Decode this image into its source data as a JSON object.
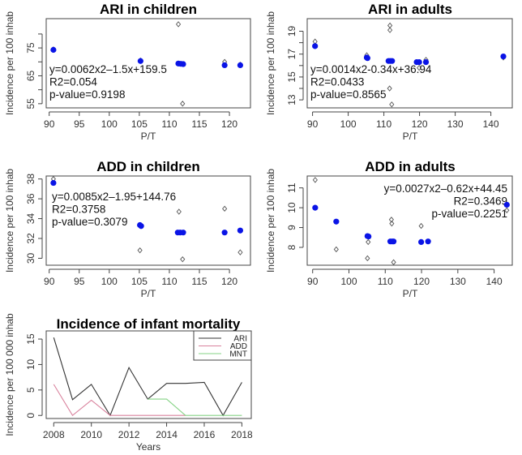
{
  "chart_data": [
    {
      "type": "scatter",
      "title": "ARI in children",
      "xlabel": "P/T",
      "ylabel": "Incidence per 100 inhab",
      "xlim": [
        89.5,
        123.5
      ],
      "ylim": [
        53.5,
        85.5
      ],
      "xticks": [
        90,
        95,
        100,
        105,
        110,
        115,
        120
      ],
      "yticks": [
        55,
        60,
        65,
        70,
        75,
        80
      ],
      "ytick_labels": {
        "55": "55",
        "65": "65",
        "75": "75"
      },
      "annotation": [
        "y=0.0062x2–1.5x+159.5",
        "R2=0.054",
        "p-value=0.9198"
      ],
      "annotation_position": "bottom-left",
      "fitted": [
        [
          90.7,
          74.3
        ],
        [
          105.2,
          70.3
        ],
        [
          111.5,
          69.4
        ],
        [
          111.9,
          69.3
        ],
        [
          112.3,
          69.2
        ],
        [
          119.2,
          68.8
        ],
        [
          121.8,
          68.8
        ]
      ],
      "observed": [
        [
          111.5,
          83.5
        ],
        [
          112.2,
          55.0
        ],
        [
          119.2,
          70.0
        ],
        [
          90.7,
          74.5
        ],
        [
          105.2,
          70.5
        ],
        [
          121.8,
          69.0
        ]
      ]
    },
    {
      "type": "scatter",
      "title": "ARI in adults",
      "xlabel": "P/T",
      "ylabel": "Incidence per 100 inhab",
      "xlim": [
        88.5,
        146
      ],
      "ylim": [
        12.3,
        20.1
      ],
      "xticks": [
        90,
        100,
        110,
        120,
        130,
        140
      ],
      "yticks": [
        13,
        14,
        15,
        16,
        17,
        18,
        19
      ],
      "ytick_labels": {
        "13": "13",
        "15": "15",
        "17": "17",
        "19": "19"
      },
      "annotation": [
        "y=0.0014x2-0.34x+36.94",
        "R2=0.0433",
        "p-value=0.8565"
      ],
      "annotation_position": "bottom-left",
      "fitted": [
        [
          90.7,
          17.7
        ],
        [
          105.2,
          16.7
        ],
        [
          105.4,
          16.65
        ],
        [
          111.3,
          16.4
        ],
        [
          111.8,
          16.4
        ],
        [
          112.3,
          16.4
        ],
        [
          119.2,
          16.3
        ],
        [
          119.9,
          16.3
        ],
        [
          121.8,
          16.3
        ],
        [
          143.5,
          16.8
        ]
      ],
      "observed": [
        [
          90.7,
          18.1
        ],
        [
          105.2,
          16.9
        ],
        [
          111.7,
          19.5
        ],
        [
          111.7,
          19.1
        ],
        [
          112.2,
          12.6
        ],
        [
          111.6,
          14.0
        ],
        [
          119.9,
          15.8
        ],
        [
          121.8,
          16.5
        ],
        [
          143.5,
          16.7
        ]
      ]
    },
    {
      "type": "scatter",
      "title": "ADD in children",
      "xlabel": "P/T",
      "ylabel": "Incidence per 100 inhab",
      "xlim": [
        89.5,
        123.5
      ],
      "ylim": [
        29.3,
        38.3
      ],
      "xticks": [
        90,
        95,
        100,
        105,
        110,
        115,
        120
      ],
      "yticks": [
        30,
        32,
        34,
        36,
        38
      ],
      "ytick_labels": {
        "30": "30",
        "32": "32",
        "34": "34",
        "36": "36",
        "38": "38"
      },
      "annotation": [
        "y=0.0085x2–1.95+144.76",
        "R2=0.3758",
        "p-value=0.3079"
      ],
      "annotation_position": "top-left",
      "fitted": [
        [
          90.7,
          37.6
        ],
        [
          105.1,
          33.35
        ],
        [
          105.3,
          33.25
        ],
        [
          111.4,
          32.6
        ],
        [
          111.8,
          32.6
        ],
        [
          112.3,
          32.6
        ],
        [
          119.2,
          32.6
        ],
        [
          121.8,
          32.8
        ]
      ],
      "observed": [
        [
          90.7,
          38.0
        ],
        [
          105.1,
          30.8
        ],
        [
          111.6,
          34.7
        ],
        [
          112.2,
          29.9
        ],
        [
          119.2,
          35.0
        ],
        [
          121.8,
          30.6
        ]
      ]
    },
    {
      "type": "scatter",
      "title": "ADD in adults",
      "xlabel": "P/T",
      "ylabel": "Incidence per 100 inhab",
      "xlim": [
        88.5,
        145
      ],
      "ylim": [
        7.1,
        11.6
      ],
      "xticks": [
        90,
        100,
        110,
        120,
        130,
        140
      ],
      "yticks": [
        8,
        9,
        10,
        11
      ],
      "ytick_labels": {
        "8": "8",
        "9": "9",
        "10": "10",
        "11": "11"
      },
      "annotation": [
        "y=0.0027x2–0.62x+44.45",
        "R2=0.3469",
        "p-value=0.2251"
      ],
      "annotation_position": "top-right",
      "fitted": [
        [
          90.7,
          10.0
        ],
        [
          96.5,
          9.3
        ],
        [
          105.1,
          8.57
        ],
        [
          105.4,
          8.55
        ],
        [
          111.4,
          8.3
        ],
        [
          111.9,
          8.3
        ],
        [
          112.3,
          8.3
        ],
        [
          119.9,
          8.27
        ],
        [
          121.8,
          8.3
        ],
        [
          143.5,
          10.15
        ]
      ],
      "observed": [
        [
          90.7,
          11.4
        ],
        [
          96.5,
          7.9
        ],
        [
          105.3,
          8.27
        ],
        [
          105.1,
          7.45
        ],
        [
          111.7,
          9.4
        ],
        [
          111.8,
          9.2
        ],
        [
          112.3,
          7.25
        ],
        [
          119.9,
          9.08
        ],
        [
          143.5,
          9.87
        ]
      ]
    },
    {
      "type": "line",
      "title": "Incidence of infant mortality",
      "xlabel": "Years",
      "ylabel": "Incidence per 100 000 inhab",
      "xlim": [
        2007.6,
        2018.5
      ],
      "ylim": [
        -0.6,
        16.6
      ],
      "xticks": [
        2008,
        2010,
        2012,
        2014,
        2016,
        2018
      ],
      "yticks": [
        0,
        5,
        10,
        15
      ],
      "legend_position": "top-right",
      "x": [
        2008,
        2009,
        2010,
        2011,
        2012,
        2013,
        2014,
        2015,
        2016,
        2017,
        2018
      ],
      "series": [
        {
          "name": "ARI",
          "color": "#333333",
          "values": [
            15.3,
            3.1,
            6.1,
            0.0,
            9.4,
            3.2,
            6.3,
            6.3,
            6.5,
            0.0,
            6.5
          ]
        },
        {
          "name": "ADD",
          "color": "#d9829d",
          "values": [
            6.1,
            0.0,
            3.0,
            0.0,
            0.0,
            0.0,
            0.0,
            0.0,
            null,
            null,
            null
          ]
        },
        {
          "name": "MNT",
          "color": "#86d386",
          "values": [
            null,
            null,
            null,
            null,
            null,
            3.2,
            3.2,
            0.0,
            0.0,
            0.0,
            0.0
          ]
        }
      ]
    }
  ],
  "colors": {
    "fitted_points": "#0a14e6",
    "observed_points": "#555555",
    "axis": "#444444"
  }
}
